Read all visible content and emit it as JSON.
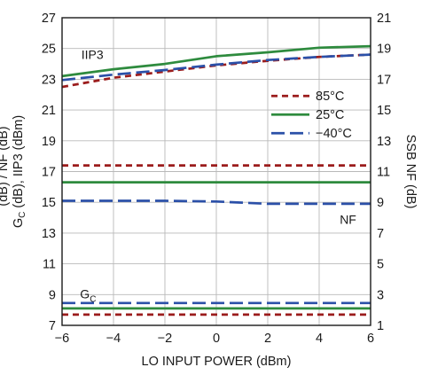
{
  "chart_data": {
    "type": "line",
    "title": "",
    "xlabel": "LO INPUT POWER (dBm)",
    "ylabel_left": "GC (dB), IIP3 (dBm)",
    "ylabel_left_main": "G",
    "ylabel_left_sub": "C",
    "ylabel_left_rest": " (dB), IIP3 (dBm)",
    "ylabel_left_clipped": "(dB) / NF (dB)",
    "ylabel_right": "SSB NF (dB)",
    "xlim": [
      -6,
      6
    ],
    "ylim_left": [
      7,
      27
    ],
    "ylim_right": [
      1,
      21
    ],
    "x_ticks": [
      -6,
      -4,
      -2,
      0,
      2,
      4,
      6
    ],
    "y_ticks_left": [
      7,
      9,
      11,
      13,
      15,
      17,
      19,
      21,
      23,
      25,
      27
    ],
    "y_ticks_right": [
      1,
      3,
      5,
      7,
      9,
      11,
      13,
      15,
      17,
      19,
      21
    ],
    "grid": true,
    "legend_position": "right-middle",
    "legend": [
      {
        "name": "85°C",
        "color": "#9b1c1c",
        "dash": "short"
      },
      {
        "name": "25°C",
        "color": "#2e8b3e",
        "dash": "solid"
      },
      {
        "name": "−40°C",
        "color": "#2b50a8",
        "dash": "long"
      }
    ],
    "annotations": {
      "iip3": "IIP3",
      "nf": "NF",
      "gc_main": "G",
      "gc_sub": "C"
    },
    "series": [
      {
        "group": "IIP3",
        "temp": "85°C",
        "axis": "left",
        "x": [
          -6,
          -4,
          -2,
          0,
          2,
          4,
          6
        ],
        "y": [
          22.5,
          23.1,
          23.5,
          23.9,
          24.2,
          24.45,
          24.6
        ]
      },
      {
        "group": "IIP3",
        "temp": "25°C",
        "axis": "left",
        "x": [
          -6,
          -4,
          -2,
          0,
          2,
          4,
          6
        ],
        "y": [
          23.2,
          23.65,
          24.0,
          24.5,
          24.75,
          25.05,
          25.15
        ]
      },
      {
        "group": "IIP3",
        "temp": "−40°C",
        "axis": "left",
        "x": [
          -6,
          -4,
          -2,
          0,
          2,
          4,
          6
        ],
        "y": [
          22.95,
          23.3,
          23.6,
          23.95,
          24.25,
          24.45,
          24.6
        ]
      },
      {
        "group": "NF",
        "temp": "85°C",
        "axis": "right",
        "x": [
          -6,
          -4,
          -2,
          0,
          2,
          4,
          6
        ],
        "y": [
          11.4,
          11.4,
          11.4,
          11.4,
          11.4,
          11.4,
          11.4
        ]
      },
      {
        "group": "NF",
        "temp": "25°C",
        "axis": "right",
        "x": [
          -6,
          -4,
          -2,
          0,
          2,
          4,
          6
        ],
        "y": [
          10.3,
          10.3,
          10.3,
          10.3,
          10.3,
          10.3,
          10.3
        ]
      },
      {
        "group": "NF",
        "temp": "−40°C",
        "axis": "right",
        "x": [
          -6,
          -4,
          -2,
          0,
          2,
          4,
          6
        ],
        "y": [
          9.1,
          9.1,
          9.1,
          9.05,
          8.9,
          8.9,
          8.9
        ]
      },
      {
        "group": "GC",
        "temp": "85°C",
        "axis": "left",
        "x": [
          -6,
          -4,
          -2,
          0,
          2,
          4,
          6
        ],
        "y": [
          7.7,
          7.7,
          7.7,
          7.7,
          7.7,
          7.7,
          7.7
        ]
      },
      {
        "group": "GC",
        "temp": "25°C",
        "axis": "left",
        "x": [
          -6,
          -4,
          -2,
          0,
          2,
          4,
          6
        ],
        "y": [
          8.1,
          8.1,
          8.1,
          8.1,
          8.1,
          8.1,
          8.1
        ]
      },
      {
        "group": "GC",
        "temp": "−40°C",
        "axis": "left",
        "x": [
          -6,
          -4,
          -2,
          0,
          2,
          4,
          6
        ],
        "y": [
          8.45,
          8.45,
          8.45,
          8.45,
          8.45,
          8.45,
          8.45
        ]
      }
    ]
  }
}
